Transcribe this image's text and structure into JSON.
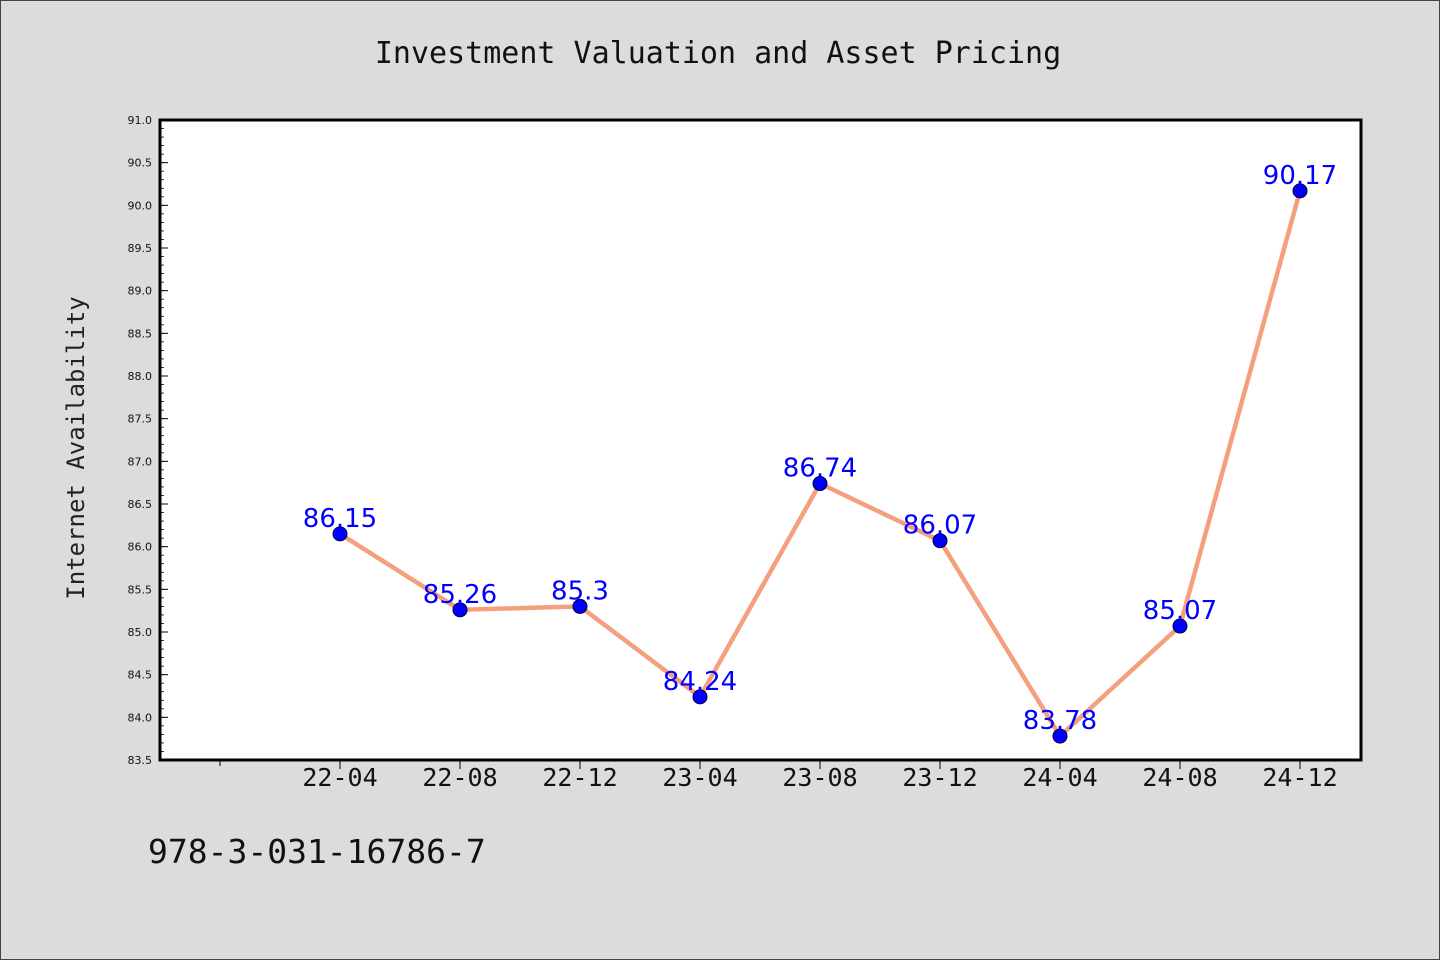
{
  "chart_data": {
    "type": "line",
    "title": "Investment Valuation and Asset Pricing",
    "xlabel": "",
    "ylabel": "Internet Availability",
    "categories": [
      "22-04",
      "22-08",
      "22-12",
      "23-04",
      "23-08",
      "23-12",
      "24-04",
      "24-08",
      "24-12"
    ],
    "values": [
      86.15,
      85.26,
      85.3,
      84.24,
      86.74,
      86.07,
      83.78,
      85.07,
      90.17
    ],
    "data_labels": [
      "86.15",
      "85.26",
      "85.3",
      "84.24",
      "86.74",
      "86.07",
      "83.78",
      "85.07",
      "90.17"
    ],
    "ylim": [
      83.5,
      91.0
    ],
    "yticks": [
      "83.5",
      "84.0",
      "84.5",
      "85.0",
      "85.5",
      "86.0",
      "86.5",
      "87.0",
      "87.5",
      "88.0",
      "88.5",
      "89.0",
      "89.5",
      "90.0",
      "90.5",
      "91.0"
    ],
    "grid": false,
    "legend": "none",
    "colors": {
      "line": "#f4a07f",
      "marker": "#0000ff",
      "data_label": "#0000ff",
      "plot_background": "#ffffff",
      "figure_background": "#dcdcdc"
    }
  },
  "footer": {
    "isbn": "978-3-031-16786-7"
  }
}
